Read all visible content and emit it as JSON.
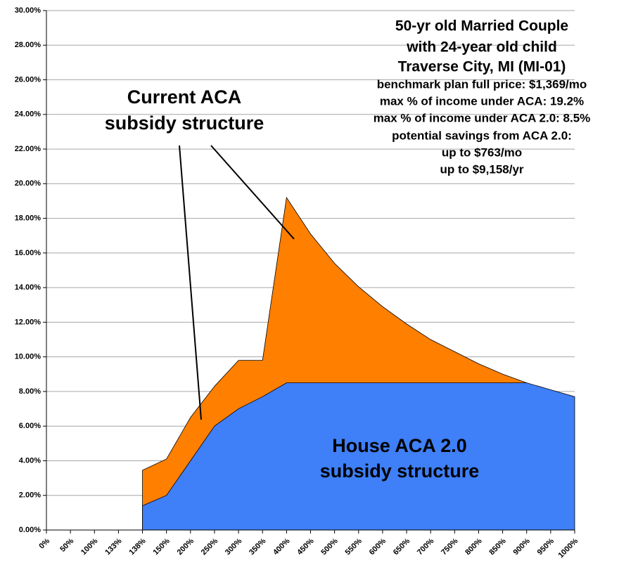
{
  "chart_data": {
    "type": "area",
    "categories": [
      "0%",
      "50%",
      "100%",
      "133%",
      "138%",
      "150%",
      "200%",
      "250%",
      "300%",
      "350%",
      "400%",
      "450%",
      "500%",
      "550%",
      "600%",
      "650%",
      "700%",
      "750%",
      "800%",
      "850%",
      "900%",
      "950%",
      "1000%"
    ],
    "series": [
      {
        "name": "Current ACA subsidy structure",
        "color": "#ff7f00",
        "values": [
          null,
          null,
          null,
          null,
          3.45,
          4.1,
          6.5,
          8.3,
          9.8,
          9.8,
          19.2,
          17.1,
          15.4,
          14.05,
          12.9,
          11.9,
          11.0,
          10.3,
          9.6,
          9.0,
          8.5,
          null,
          null
        ]
      },
      {
        "name": "House ACA 2.0 subsidy structure",
        "color": "#3f7ff7",
        "values": [
          null,
          null,
          null,
          null,
          1.4,
          2.0,
          4.0,
          6.0,
          7.0,
          7.7,
          8.5,
          8.5,
          8.5,
          8.5,
          8.5,
          8.5,
          8.5,
          8.5,
          8.5,
          8.5,
          8.5,
          8.1,
          7.7
        ]
      }
    ],
    "ylim": [
      0,
      30
    ],
    "yticks": [
      {
        "value": 0,
        "label": "0.00%"
      },
      {
        "value": 2,
        "label": "2.00%"
      },
      {
        "value": 4,
        "label": "4.00%"
      },
      {
        "value": 6,
        "label": "6.00%"
      },
      {
        "value": 8,
        "label": "8.00%"
      },
      {
        "value": 10,
        "label": "10.00%"
      },
      {
        "value": 12,
        "label": "12.00%"
      },
      {
        "value": 14,
        "label": "14.00%"
      },
      {
        "value": 16,
        "label": "16.00%"
      },
      {
        "value": 18,
        "label": "18.00%"
      },
      {
        "value": 20,
        "label": "20.00%"
      },
      {
        "value": 22,
        "label": "22.00%"
      },
      {
        "value": 24,
        "label": "24.00%"
      },
      {
        "value": 26,
        "label": "26.00%"
      },
      {
        "value": 28,
        "label": "28.00%"
      },
      {
        "value": 30,
        "label": "30.00%"
      }
    ],
    "grid": true,
    "annotations": {
      "info": [
        "50-yr old Married Couple",
        "with 24-year old child",
        "Traverse City, MI (MI-01)",
        "benchmark plan full price: $1,369/mo",
        "max % of income under ACA: 19.2%",
        "max % of income under ACA 2.0: 8.5%",
        "potential savings from ACA 2.0:",
        "up to $763/mo",
        "up to $9,158/yr"
      ],
      "current": [
        "Current ACA",
        "subsidy structure"
      ],
      "house": [
        "House ACA 2.0",
        "subsidy structure"
      ]
    }
  }
}
